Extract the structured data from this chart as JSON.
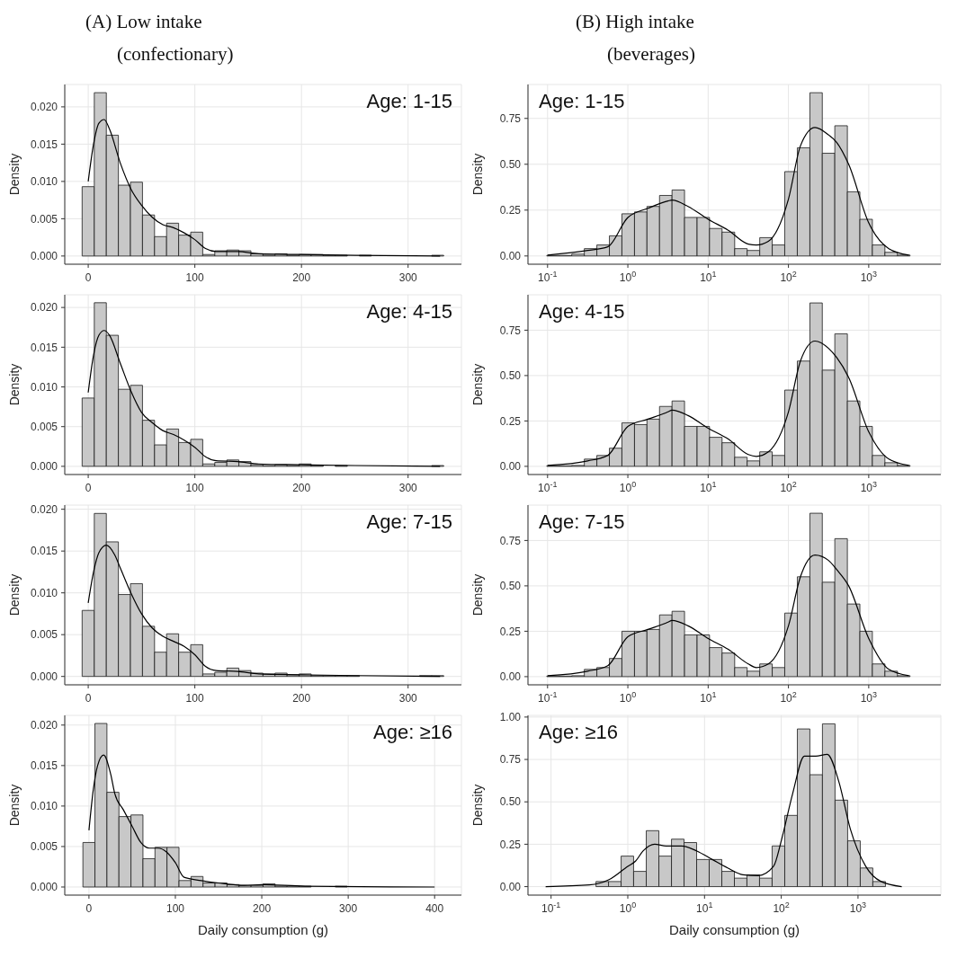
{
  "chart_data": [
    {
      "type": "histogram",
      "title": "(A) Low intake",
      "subtitle": "(confectionary)",
      "ylabel": "Density",
      "annotations": [
        "Age: 1-15"
      ],
      "xlim": [
        -22,
        350
      ],
      "xticks": [
        0,
        100,
        200,
        300
      ],
      "ylim": [
        -0.0011,
        0.023
      ],
      "yticks": [
        {
          "value": 0,
          "label": "0.000"
        },
        {
          "value": 0.005,
          "label": "0.005"
        },
        {
          "value": 0.01,
          "label": "0.010"
        },
        {
          "value": 0.015,
          "label": "0.015"
        },
        {
          "value": 0.02,
          "label": "0.020"
        }
      ],
      "grid": true,
      "legend": false,
      "series": [
        {
          "type": "histogram",
          "color": "#c8c8c8",
          "bins": [
            -5.7,
            5.7,
            17.0,
            28.3,
            39.6,
            50.9,
            62.2,
            73.5,
            84.8,
            96.1,
            107.4,
            118.7,
            130.0,
            141.3,
            152.6,
            163.9,
            175.2,
            186.5,
            197.8,
            209.1,
            220.4,
            231.7,
            243.0,
            254.3,
            265.6,
            276.9,
            288.2,
            299.5,
            310.8,
            322.1,
            333.4
          ],
          "values": [
            0.0093,
            0.0219,
            0.0162,
            0.0095,
            0.0099,
            0.0055,
            0.0026,
            0.0044,
            0.0028,
            0.0032,
            0.0002,
            0.0007,
            0.0008,
            0.0007,
            0.0003,
            0.0001,
            0.0003,
            0.0001,
            0.0002,
            0.0002,
            0.0001,
            0.0001,
            0,
            0.0001,
            0,
            0,
            0,
            0,
            0,
            0.0001
          ]
        },
        {
          "type": "line",
          "color": "#000000",
          "x": [
            0,
            5,
            10,
            15,
            20,
            30,
            40,
            50,
            60,
            70,
            80,
            90,
            100,
            110,
            120,
            140,
            160,
            200,
            250,
            330
          ],
          "values": [
            0.01,
            0.015,
            0.0178,
            0.0183,
            0.017,
            0.0125,
            0.009,
            0.0068,
            0.0052,
            0.0042,
            0.0038,
            0.0031,
            0.0022,
            0.001,
            0.0006,
            0.0006,
            0.0003,
            0.0002,
            0.0001,
            0
          ]
        }
      ]
    },
    {
      "type": "histogram",
      "title": "(B) High intake",
      "subtitle": "(beverages)",
      "ylabel": "Density",
      "annotations": [
        "Age: 1-15"
      ],
      "log": "x",
      "xlim": [
        0.057,
        7900
      ],
      "xticks": [
        {
          "value": 0.1,
          "label": "10$^{-1}$"
        },
        {
          "value": 1,
          "label": "10$^{0}$"
        },
        {
          "value": 10,
          "label": "10$^{1}$"
        },
        {
          "value": 100,
          "label": "10$^{2}$"
        },
        {
          "value": 1000,
          "label": "10$^{3}$"
        }
      ],
      "ylim": [
        -0.045,
        0.935
      ],
      "yticks": [
        {
          "value": 0,
          "label": "0.00"
        },
        {
          "value": 0.25,
          "label": "0.25"
        },
        {
          "value": 0.5,
          "label": "0.50"
        },
        {
          "value": 0.75,
          "label": "0.75"
        }
      ],
      "grid": true,
      "legend": false,
      "series": [
        {
          "type": "histogram",
          "color": "#c8c8c8",
          "bins": [
            0.0977,
            0.14,
            0.2,
            0.287,
            0.411,
            0.589,
            0.843,
            1.21,
            1.73,
            2.48,
            3.55,
            5.08,
            7.28,
            10.4,
            14.9,
            21.4,
            30.6,
            43.9,
            62.8,
            89.9,
            129,
            185,
            264,
            378,
            542,
            776,
            1110,
            1590,
            2280,
            3270,
            4680
          ],
          "values": [
            0.003,
            0.003,
            0.01,
            0.04,
            0.06,
            0.11,
            0.23,
            0.24,
            0.27,
            0.33,
            0.36,
            0.21,
            0.21,
            0.15,
            0.13,
            0.04,
            0.03,
            0.1,
            0.06,
            0.46,
            0.59,
            0.89,
            0.56,
            0.71,
            0.35,
            0.2,
            0.06,
            0.02,
            0.005,
            0
          ]
        },
        {
          "type": "line",
          "color": "#000000",
          "x": [
            0.1,
            0.316,
            0.562,
            1,
            1.78,
            3.16,
            3.55,
            5.62,
            10,
            17.8,
            31.6,
            39.8,
            56.2,
            100,
            141,
            214,
            316,
            398,
            562,
            1000,
            1778,
            3162
          ],
          "values": [
            0.005,
            0.03,
            0.05,
            0.21,
            0.26,
            0.3,
            0.305,
            0.27,
            0.2,
            0.14,
            0.065,
            0.06,
            0.08,
            0.31,
            0.6,
            0.7,
            0.66,
            0.62,
            0.5,
            0.18,
            0.04,
            0.005
          ]
        }
      ]
    },
    {
      "type": "histogram",
      "ylabel": "Density",
      "annotations": [
        "Age: 4-15"
      ],
      "xlim": [
        -22,
        350
      ],
      "xticks": [
        0,
        100,
        200,
        300
      ],
      "ylim": [
        -0.00103,
        0.0216
      ],
      "yticks": [
        {
          "value": 0,
          "label": "0.000"
        },
        {
          "value": 0.005,
          "label": "0.005"
        },
        {
          "value": 0.01,
          "label": "0.010"
        },
        {
          "value": 0.015,
          "label": "0.015"
        },
        {
          "value": 0.02,
          "label": "0.020"
        }
      ],
      "grid": true,
      "legend": false,
      "series": [
        {
          "type": "histogram",
          "color": "#c8c8c8",
          "bins": [
            -5.7,
            5.7,
            17.0,
            28.3,
            39.6,
            50.9,
            62.2,
            73.5,
            84.8,
            96.1,
            107.4,
            118.7,
            130.0,
            141.3,
            152.6,
            163.9,
            175.2,
            186.5,
            197.8,
            209.1,
            220.4,
            231.7,
            243.0,
            254.3,
            265.6,
            276.9,
            288.2,
            299.5,
            310.8,
            322.1,
            333.4
          ],
          "values": [
            0.0086,
            0.0206,
            0.0165,
            0.0097,
            0.0102,
            0.0058,
            0.0027,
            0.0047,
            0.003,
            0.0034,
            0.0003,
            0.0005,
            0.0008,
            0.0006,
            0.0002,
            0.0001,
            0.0002,
            0.0001,
            0.0003,
            0.0001,
            0,
            0.0001,
            0,
            0,
            0,
            0,
            0,
            0,
            0,
            0.0001
          ]
        },
        {
          "type": "line",
          "color": "#000000",
          "x": [
            0,
            5,
            10,
            15,
            20,
            30,
            40,
            50,
            60,
            70,
            80,
            90,
            100,
            110,
            120,
            140,
            160,
            200,
            250,
            330
          ],
          "values": [
            0.0093,
            0.014,
            0.0165,
            0.0171,
            0.0165,
            0.013,
            0.0095,
            0.0068,
            0.0055,
            0.0045,
            0.004,
            0.0033,
            0.0024,
            0.0012,
            0.0007,
            0.0006,
            0.0003,
            0.0002,
            0.0001,
            0
          ]
        }
      ]
    },
    {
      "type": "histogram",
      "ylabel": "Density",
      "annotations": [
        "Age: 4-15"
      ],
      "log": "x",
      "xlim": [
        0.057,
        7900
      ],
      "xticks": [
        {
          "value": 0.1,
          "label": "10$^{-1}$"
        },
        {
          "value": 1,
          "label": "10$^{0}$"
        },
        {
          "value": 10,
          "label": "10$^{1}$"
        },
        {
          "value": 100,
          "label": "10$^{2}$"
        },
        {
          "value": 1000,
          "label": "10$^{3}$"
        }
      ],
      "ylim": [
        -0.045,
        0.945
      ],
      "yticks": [
        {
          "value": 0,
          "label": "0.00"
        },
        {
          "value": 0.25,
          "label": "0.25"
        },
        {
          "value": 0.5,
          "label": "0.50"
        },
        {
          "value": 0.75,
          "label": "0.75"
        }
      ],
      "grid": true,
      "legend": false,
      "series": [
        {
          "type": "histogram",
          "color": "#c8c8c8",
          "bins": [
            0.0977,
            0.14,
            0.2,
            0.287,
            0.411,
            0.589,
            0.843,
            1.21,
            1.73,
            2.48,
            3.55,
            5.08,
            7.28,
            10.4,
            14.9,
            21.4,
            30.6,
            43.9,
            62.8,
            89.9,
            129,
            185,
            264,
            378,
            542,
            776,
            1110,
            1590,
            2280,
            3270,
            4680
          ],
          "values": [
            0.003,
            0.003,
            0.005,
            0.04,
            0.06,
            0.1,
            0.24,
            0.23,
            0.26,
            0.33,
            0.36,
            0.22,
            0.22,
            0.16,
            0.13,
            0.05,
            0.03,
            0.08,
            0.06,
            0.42,
            0.58,
            0.9,
            0.53,
            0.73,
            0.36,
            0.22,
            0.06,
            0.02,
            0.005,
            0
          ]
        },
        {
          "type": "line",
          "color": "#000000",
          "x": [
            0.1,
            0.316,
            0.562,
            1,
            1.78,
            3.16,
            3.55,
            5.62,
            10,
            17.8,
            31.6,
            39.8,
            56.2,
            100,
            141,
            214,
            316,
            398,
            562,
            1000,
            1778,
            3162
          ],
          "values": [
            0.005,
            0.03,
            0.06,
            0.22,
            0.26,
            0.3,
            0.31,
            0.28,
            0.21,
            0.15,
            0.065,
            0.055,
            0.08,
            0.3,
            0.58,
            0.69,
            0.65,
            0.6,
            0.49,
            0.19,
            0.04,
            0.005
          ]
        }
      ]
    },
    {
      "type": "histogram",
      "ylabel": "Density",
      "annotations": [
        "Age: 7-15"
      ],
      "xlim": [
        -22,
        350
      ],
      "xticks": [
        0,
        100,
        200,
        300
      ],
      "ylim": [
        -0.001,
        0.0205
      ],
      "yticks": [
        {
          "value": 0,
          "label": "0.000"
        },
        {
          "value": 0.005,
          "label": "0.005"
        },
        {
          "value": 0.01,
          "label": "0.010"
        },
        {
          "value": 0.015,
          "label": "0.015"
        },
        {
          "value": 0.02,
          "label": "0.020"
        }
      ],
      "grid": true,
      "legend": false,
      "series": [
        {
          "type": "histogram",
          "color": "#c8c8c8",
          "bins": [
            -5.7,
            5.7,
            17.0,
            28.3,
            39.6,
            50.9,
            62.2,
            73.5,
            84.8,
            96.1,
            107.4,
            118.7,
            130.0,
            141.3,
            152.6,
            163.9,
            175.2,
            186.5,
            197.8,
            209.1,
            220.4,
            231.7,
            243.0,
            254.3,
            265.6,
            276.9,
            288.2,
            299.5,
            310.8,
            322.1,
            333.4
          ],
          "values": [
            0.0079,
            0.0195,
            0.0161,
            0.0098,
            0.0111,
            0.006,
            0.0029,
            0.0051,
            0.0029,
            0.0038,
            0.0003,
            0.0005,
            0.001,
            0.0007,
            0.0004,
            0.0003,
            0.0004,
            0.0002,
            0.0003,
            0.0001,
            0.0001,
            0.0001,
            0.0001,
            0,
            0,
            null,
            0,
            0,
            0.0001,
            0.0001
          ]
        },
        {
          "type": "line",
          "color": "#000000",
          "x": [
            0,
            5,
            10,
            17,
            25,
            30,
            40,
            50,
            60,
            70,
            80,
            90,
            100,
            110,
            120,
            140,
            160,
            200,
            250,
            330
          ],
          "values": [
            0.0088,
            0.0125,
            0.0148,
            0.0157,
            0.0145,
            0.013,
            0.01,
            0.0075,
            0.0058,
            0.0048,
            0.0042,
            0.0036,
            0.0026,
            0.0012,
            0.0007,
            0.0006,
            0.0003,
            0.0002,
            0.0001,
            0
          ]
        }
      ]
    },
    {
      "type": "histogram",
      "ylabel": "Density",
      "annotations": [
        "Age: 7-15"
      ],
      "log": "x",
      "xlim": [
        0.057,
        7900
      ],
      "xticks": [
        {
          "value": 0.1,
          "label": "10$^{-1}$"
        },
        {
          "value": 1,
          "label": "10$^{0}$"
        },
        {
          "value": 10,
          "label": "10$^{1}$"
        },
        {
          "value": 100,
          "label": "10$^{2}$"
        },
        {
          "value": 1000,
          "label": "10$^{3}$"
        }
      ],
      "ylim": [
        -0.045,
        0.945
      ],
      "yticks": [
        {
          "value": 0,
          "label": "0.00"
        },
        {
          "value": 0.25,
          "label": "0.25"
        },
        {
          "value": 0.5,
          "label": "0.50"
        },
        {
          "value": 0.75,
          "label": "0.75"
        }
      ],
      "grid": true,
      "legend": false,
      "series": [
        {
          "type": "histogram",
          "color": "#c8c8c8",
          "bins": [
            0.0977,
            0.14,
            0.2,
            0.287,
            0.411,
            0.589,
            0.843,
            1.21,
            1.73,
            2.48,
            3.55,
            5.08,
            7.28,
            10.4,
            14.9,
            21.4,
            30.6,
            43.9,
            62.8,
            89.9,
            129,
            185,
            264,
            378,
            542,
            776,
            1110,
            1590,
            2280,
            3270,
            4680
          ],
          "values": [
            0.003,
            0.003,
            0.005,
            0.04,
            0.05,
            0.1,
            0.25,
            0.25,
            0.26,
            0.34,
            0.36,
            0.23,
            0.23,
            0.16,
            0.13,
            0.05,
            0.03,
            0.07,
            0.05,
            0.35,
            0.55,
            0.9,
            0.52,
            0.76,
            0.4,
            0.25,
            0.07,
            0.03,
            0.005,
            0
          ]
        },
        {
          "type": "line",
          "color": "#000000",
          "x": [
            0.1,
            0.316,
            0.562,
            1,
            1.78,
            3.16,
            3.55,
            5.62,
            10,
            17.8,
            31.6,
            39.8,
            56.2,
            100,
            141,
            214,
            316,
            398,
            562,
            1000,
            1778,
            3162
          ],
          "values": [
            0.005,
            0.03,
            0.06,
            0.22,
            0.26,
            0.3,
            0.31,
            0.28,
            0.21,
            0.15,
            0.07,
            0.05,
            0.07,
            0.28,
            0.55,
            0.67,
            0.64,
            0.59,
            0.5,
            0.21,
            0.04,
            0.005
          ]
        }
      ]
    },
    {
      "type": "histogram",
      "xlabel": "Daily consumption (g)",
      "ylabel": "Density",
      "annotations": [
        "Age: ≥16"
      ],
      "xlim": [
        -28,
        431
      ],
      "xticks": [
        0,
        100,
        200,
        300,
        400
      ],
      "ylim": [
        -0.001,
        0.0212
      ],
      "yticks": [
        {
          "value": 0,
          "label": "0.000"
        },
        {
          "value": 0.005,
          "label": "0.005"
        },
        {
          "value": 0.01,
          "label": "0.010"
        },
        {
          "value": 0.015,
          "label": "0.015"
        },
        {
          "value": 0.02,
          "label": "0.020"
        }
      ],
      "grid": true,
      "legend": false,
      "series": [
        {
          "type": "histogram",
          "color": "#c8c8c8",
          "bins": [
            -7,
            6.9,
            20.8,
            34.7,
            48.6,
            62.5,
            76.4,
            90.3,
            104.2,
            118.1,
            132,
            145.9,
            159.8,
            173.7,
            187.6,
            201.5,
            215.4,
            229.3,
            243.2,
            257.1,
            271,
            284.9,
            298.8,
            312.7,
            326.6,
            340.5,
            354.4,
            368.3,
            382.2,
            396.1,
            410
          ],
          "values": [
            0.0055,
            0.0202,
            0.0117,
            0.0087,
            0.0089,
            0.0035,
            0.0049,
            0.0049,
            0.0008,
            0.0013,
            0.0005,
            0.0005,
            0.0003,
            0.0002,
            0.0002,
            0.0004,
            0.0001,
            0.0001,
            0.0001,
            0,
            0,
            0.0001,
            0,
            0,
            0,
            0,
            0,
            0,
            0,
            0
          ]
        },
        {
          "type": "line",
          "color": "#000000",
          "x": [
            0,
            5,
            10,
            17,
            25,
            30,
            40,
            50,
            60,
            70,
            80,
            90,
            100,
            110,
            130,
            150,
            180,
            200,
            250,
            400
          ],
          "values": [
            0.007,
            0.012,
            0.015,
            0.0163,
            0.014,
            0.0115,
            0.0095,
            0.0075,
            0.0055,
            0.0048,
            0.0048,
            0.0043,
            0.003,
            0.0012,
            0.0008,
            0.0005,
            0.0002,
            0.0003,
            0.0001,
            0
          ]
        }
      ]
    },
    {
      "type": "histogram",
      "xlabel": "Daily consumption (g)",
      "ylabel": "Density",
      "annotations": [
        "Age: ≥16"
      ],
      "log": "x",
      "xlim": [
        0.05,
        12000
      ],
      "xticks": [
        {
          "value": 0.1,
          "label": "10$^{-1}$"
        },
        {
          "value": 1,
          "label": "10$^{0}$"
        },
        {
          "value": 10,
          "label": "10$^{1}$"
        },
        {
          "value": 100,
          "label": "10$^{2}$"
        },
        {
          "value": 1000,
          "label": "10$^{3}$"
        }
      ],
      "ylim": [
        -0.05,
        1.01
      ],
      "yticks": [
        {
          "value": 0,
          "label": "0.00"
        },
        {
          "value": 0.25,
          "label": "0.25"
        },
        {
          "value": 0.5,
          "label": "0.50"
        },
        {
          "value": 0.75,
          "label": "0.75"
        },
        {
          "value": 1,
          "label": "1.00"
        }
      ],
      "grid": true,
      "legend": false,
      "series": [
        {
          "type": "histogram",
          "color": "#c8c8c8",
          "bins": [
            0.0849,
            0.124,
            0.181,
            0.264,
            0.385,
            0.561,
            0.818,
            1.19,
            1.74,
            2.54,
            3.71,
            5.41,
            7.89,
            11.5,
            16.8,
            24.5,
            35.7,
            52.1,
            76.0,
            111,
            162,
            236,
            344,
            502,
            733,
            1070,
            1560,
            2280,
            3320,
            4840,
            7060
          ],
          "values": [
            0,
            0,
            0,
            0,
            0.03,
            0.03,
            0.18,
            0.09,
            0.33,
            0.18,
            0.28,
            0.26,
            0.16,
            0.16,
            0.09,
            0.05,
            0.07,
            0.05,
            0.24,
            0.42,
            0.93,
            0.66,
            0.96,
            0.51,
            0.27,
            0.11,
            0.03,
            null,
            0,
            0
          ]
        },
        {
          "type": "line",
          "color": "#000000",
          "x": [
            0.085,
            0.316,
            0.562,
            1,
            1.26,
            1.58,
            2.24,
            3.16,
            5.01,
            7.94,
            12.6,
            20,
            31.6,
            50.1,
            79.4,
            100,
            141,
            200,
            282,
            398,
            562,
            794,
            1259,
            1995,
            3715
          ],
          "values": [
            0,
            0.01,
            0.04,
            0.12,
            0.15,
            0.21,
            0.25,
            0.24,
            0.24,
            0.21,
            0.16,
            0.11,
            0.07,
            0.065,
            0.12,
            0.27,
            0.55,
            0.77,
            0.77,
            0.78,
            0.62,
            0.34,
            0.12,
            0.03,
            0
          ]
        }
      ]
    }
  ]
}
